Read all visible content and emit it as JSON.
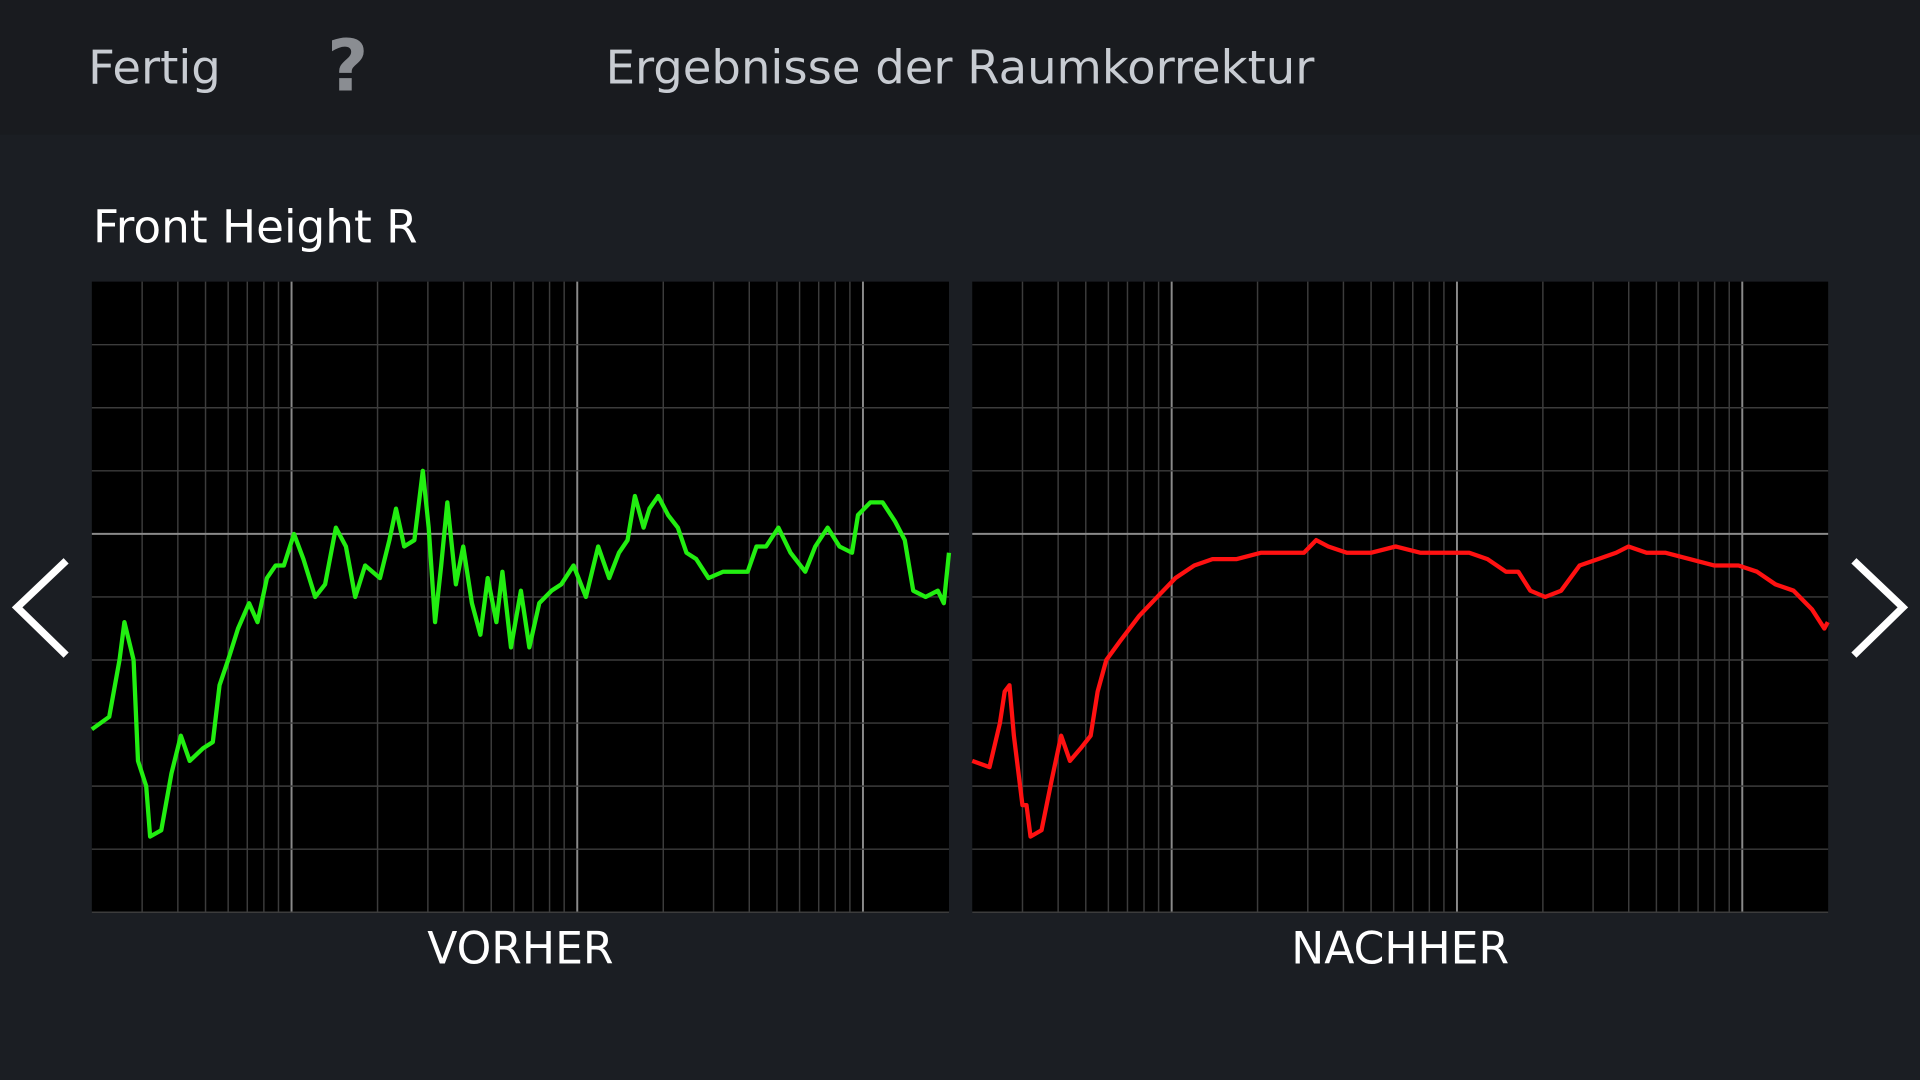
{
  "header": {
    "done": "Fertig",
    "help": "?",
    "title": "Ergebnisse der Raumkorrektur"
  },
  "section_title": "Front Height R",
  "chart_data": [
    {
      "type": "line",
      "caption": "VORHER",
      "log_x": true,
      "grid": true,
      "xlim": [
        20,
        20000
      ],
      "ylim": [
        -6,
        4
      ],
      "xticks": [
        30,
        40,
        50,
        60,
        70,
        80,
        90,
        100,
        200,
        300,
        400,
        500,
        600,
        700,
        800,
        900,
        1000,
        2000,
        3000,
        4000,
        5000,
        6000,
        7000,
        8000,
        9000,
        10000
      ],
      "yticks": [
        -6,
        -5,
        -4,
        -3,
        -2,
        -1,
        0,
        1,
        2,
        3
      ],
      "x": [
        20,
        23,
        25,
        26,
        28,
        29,
        31,
        32,
        35,
        38,
        41,
        44,
        49,
        53,
        56,
        60,
        65,
        71,
        76,
        82,
        88,
        94,
        102,
        110,
        121,
        131,
        143,
        155,
        167,
        181,
        204,
        220,
        232,
        248,
        269,
        288,
        302,
        318,
        334,
        351,
        376,
        399,
        428,
        458,
        486,
        521,
        547,
        586,
        635,
        680,
        736,
        813,
        879,
        971,
        1072,
        1183,
        1293,
        1400,
        1500,
        1592,
        1706,
        1790,
        1920,
        2080,
        2250,
        2410,
        2610,
        2880,
        3240,
        3580,
        3950,
        4240,
        4580,
        5060,
        5580,
        6280,
        6810,
        7520,
        8280,
        9150,
        9610,
        10610,
        11720,
        12940,
        14000,
        15000,
        16560,
        18280,
        19190,
        20000
      ],
      "series": [
        {
          "color": "#22ee11",
          "values": [
            -3.1,
            -2.9,
            -2.0,
            -1.4,
            -2.0,
            -3.6,
            -4.0,
            -4.8,
            -4.7,
            -3.8,
            -3.2,
            -3.6,
            -3.4,
            -3.3,
            -2.4,
            -2.0,
            -1.5,
            -1.1,
            -1.4,
            -0.7,
            -0.5,
            -0.5,
            0.0,
            -0.4,
            -1.0,
            -0.8,
            0.1,
            -0.2,
            -1.0,
            -0.5,
            -0.7,
            -0.1,
            0.4,
            -0.2,
            -0.1,
            1.0,
            0.1,
            -1.4,
            -0.5,
            0.5,
            -0.8,
            -0.2,
            -1.1,
            -1.6,
            -0.7,
            -1.4,
            -0.6,
            -1.8,
            -0.9,
            -1.8,
            -1.1,
            -0.9,
            -0.8,
            -0.5,
            -1.0,
            -0.2,
            -0.7,
            -0.3,
            -0.1,
            0.6,
            0.1,
            0.4,
            0.6,
            0.3,
            0.1,
            -0.3,
            -0.4,
            -0.7,
            -0.6,
            -0.6,
            -0.6,
            -0.2,
            -0.2,
            0.1,
            -0.3,
            -0.6,
            -0.2,
            0.1,
            -0.2,
            -0.3,
            0.3,
            0.5,
            0.5,
            0.2,
            -0.1,
            -0.9,
            -1.0,
            -0.9,
            -1.1,
            -0.3
          ]
        }
      ]
    },
    {
      "type": "line",
      "caption": "NACHHER",
      "log_x": true,
      "grid": true,
      "xlim": [
        20,
        20000
      ],
      "ylim": [
        -6,
        4
      ],
      "xticks": [
        30,
        40,
        50,
        60,
        70,
        80,
        90,
        100,
        200,
        300,
        400,
        500,
        600,
        700,
        800,
        900,
        1000,
        2000,
        3000,
        4000,
        5000,
        6000,
        7000,
        8000,
        9000,
        10000
      ],
      "yticks": [
        -6,
        -5,
        -4,
        -3,
        -2,
        -1,
        0,
        1,
        2,
        3
      ],
      "x": [
        20,
        23,
        25,
        26,
        27,
        28,
        30,
        31,
        32,
        35,
        38,
        41,
        44,
        48,
        52,
        55,
        59,
        66,
        77,
        89,
        103,
        120,
        139,
        169,
        206,
        251,
        291,
        321,
        354,
        411,
        501,
        610,
        743,
        906,
        1104,
        1280,
        1485,
        1640,
        1809,
        2037,
        2317,
        2690,
        3120,
        3610,
        3990,
        4620,
        5370,
        6540,
        7960,
        9700,
        11260,
        13060,
        15140,
        17570,
        19400,
        19950
      ],
      "series": [
        {
          "color": "#ff1111",
          "values": [
            -3.6,
            -3.7,
            -3.0,
            -2.5,
            -2.4,
            -3.2,
            -4.3,
            -4.3,
            -4.8,
            -4.7,
            -3.9,
            -3.2,
            -3.6,
            -3.4,
            -3.2,
            -2.5,
            -2.0,
            -1.7,
            -1.3,
            -1.0,
            -0.7,
            -0.5,
            -0.4,
            -0.4,
            -0.3,
            -0.3,
            -0.3,
            -0.1,
            -0.2,
            -0.3,
            -0.3,
            -0.2,
            -0.3,
            -0.3,
            -0.3,
            -0.4,
            -0.6,
            -0.6,
            -0.9,
            -1.0,
            -0.9,
            -0.5,
            -0.4,
            -0.3,
            -0.2,
            -0.3,
            -0.3,
            -0.4,
            -0.5,
            -0.5,
            -0.6,
            -0.8,
            -0.9,
            -1.2,
            -1.5,
            -1.4
          ]
        }
      ]
    }
  ]
}
